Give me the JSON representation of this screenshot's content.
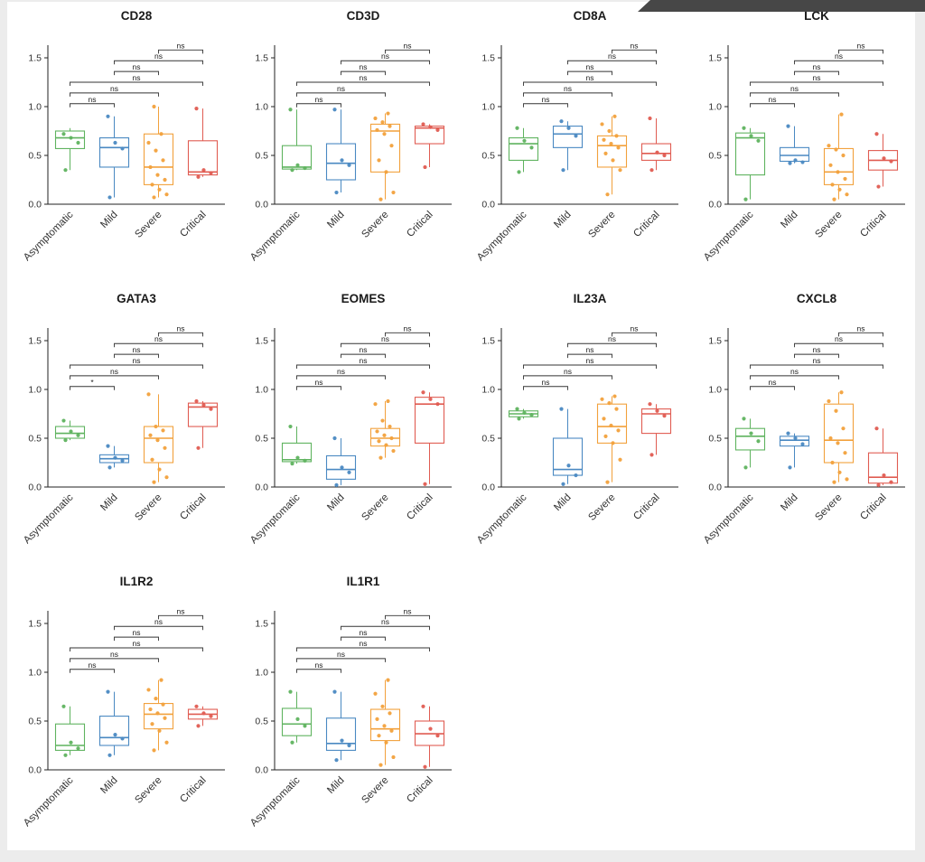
{
  "page": {
    "background_color": "#ececec",
    "plot_background_color": "#ffffff",
    "artifact_color": "#474747"
  },
  "chart_data": {
    "type": "boxplot-grid",
    "description": "Gene expression boxplots with jittered points across COVID-19 severity groups, pairwise significance brackets",
    "categories": [
      "Asymptomatic",
      "Mild",
      "Severe",
      "Critical"
    ],
    "colors": [
      "#5fb35f",
      "#4a89c2",
      "#f2a13c",
      "#e05c52"
    ],
    "y_ticks": [
      0.0,
      0.5,
      1.0,
      1.5
    ],
    "ylim": [
      0,
      1.65
    ],
    "comparisons": [
      [
        0,
        1
      ],
      [
        0,
        2
      ],
      [
        0,
        3
      ],
      [
        1,
        2
      ],
      [
        1,
        3
      ],
      [
        2,
        3
      ]
    ],
    "bracket_heights": [
      1.03,
      1.14,
      1.25,
      1.36,
      1.47,
      1.58
    ],
    "panels": [
      {
        "title": "CD28",
        "sig": [
          "ns",
          "ns",
          "ns",
          "ns",
          "ns",
          "ns"
        ],
        "groups": [
          {
            "low": 0.35,
            "q1": 0.57,
            "med": 0.68,
            "q3": 0.75,
            "high": 0.78,
            "points": [
              0.35,
              0.63,
              0.68,
              0.72
            ]
          },
          {
            "low": 0.07,
            "q1": 0.38,
            "med": 0.58,
            "q3": 0.68,
            "high": 0.9,
            "points": [
              0.07,
              0.57,
              0.63,
              0.9
            ]
          },
          {
            "low": 0.07,
            "q1": 0.2,
            "med": 0.38,
            "q3": 0.72,
            "high": 1.0,
            "points": [
              0.07,
              0.1,
              0.15,
              0.2,
              0.25,
              0.3,
              0.38,
              0.45,
              0.55,
              0.63,
              0.72,
              1.0
            ]
          },
          {
            "low": 0.28,
            "q1": 0.3,
            "med": 0.33,
            "q3": 0.65,
            "high": 0.98,
            "points": [
              0.28,
              0.32,
              0.35,
              0.98
            ]
          }
        ]
      },
      {
        "title": "CD3D",
        "sig": [
          "ns",
          "ns",
          "ns",
          "ns",
          "ns",
          "ns"
        ],
        "groups": [
          {
            "low": 0.35,
            "q1": 0.36,
            "med": 0.38,
            "q3": 0.6,
            "high": 0.97,
            "points": [
              0.35,
              0.37,
              0.4,
              0.97
            ]
          },
          {
            "low": 0.12,
            "q1": 0.25,
            "med": 0.42,
            "q3": 0.62,
            "high": 0.97,
            "points": [
              0.12,
              0.4,
              0.45,
              0.97
            ]
          },
          {
            "low": 0.05,
            "q1": 0.33,
            "med": 0.75,
            "q3": 0.82,
            "high": 0.93,
            "points": [
              0.05,
              0.12,
              0.33,
              0.45,
              0.6,
              0.72,
              0.76,
              0.8,
              0.84,
              0.88,
              0.93
            ]
          },
          {
            "low": 0.38,
            "q1": 0.62,
            "med": 0.78,
            "q3": 0.8,
            "high": 0.82,
            "points": [
              0.38,
              0.76,
              0.79,
              0.82
            ]
          }
        ]
      },
      {
        "title": "CD8A",
        "sig": [
          "ns",
          "ns",
          "ns",
          "ns",
          "ns",
          "ns"
        ],
        "groups": [
          {
            "low": 0.33,
            "q1": 0.45,
            "med": 0.62,
            "q3": 0.68,
            "high": 0.78,
            "points": [
              0.33,
              0.58,
              0.65,
              0.78
            ]
          },
          {
            "low": 0.35,
            "q1": 0.58,
            "med": 0.72,
            "q3": 0.8,
            "high": 0.85,
            "points": [
              0.35,
              0.7,
              0.78,
              0.85
            ]
          },
          {
            "low": 0.1,
            "q1": 0.38,
            "med": 0.6,
            "q3": 0.7,
            "high": 0.9,
            "points": [
              0.1,
              0.35,
              0.45,
              0.52,
              0.58,
              0.62,
              0.66,
              0.7,
              0.75,
              0.82,
              0.9
            ]
          },
          {
            "low": 0.35,
            "q1": 0.45,
            "med": 0.52,
            "q3": 0.62,
            "high": 0.88,
            "points": [
              0.35,
              0.5,
              0.53,
              0.88
            ]
          }
        ]
      },
      {
        "title": "LCK",
        "sig": [
          "ns",
          "ns",
          "ns",
          "ns",
          "ns",
          "ns"
        ],
        "groups": [
          {
            "low": 0.05,
            "q1": 0.3,
            "med": 0.68,
            "q3": 0.73,
            "high": 0.78,
            "points": [
              0.05,
              0.65,
              0.7,
              0.78
            ]
          },
          {
            "low": 0.42,
            "q1": 0.44,
            "med": 0.5,
            "q3": 0.58,
            "high": 0.8,
            "points": [
              0.42,
              0.43,
              0.45,
              0.8
            ]
          },
          {
            "low": 0.05,
            "q1": 0.2,
            "med": 0.33,
            "q3": 0.57,
            "high": 0.92,
            "points": [
              0.05,
              0.1,
              0.15,
              0.2,
              0.26,
              0.33,
              0.4,
              0.5,
              0.56,
              0.6,
              0.92
            ]
          },
          {
            "low": 0.18,
            "q1": 0.35,
            "med": 0.45,
            "q3": 0.55,
            "high": 0.72,
            "points": [
              0.18,
              0.44,
              0.47,
              0.72
            ]
          }
        ]
      },
      {
        "title": "GATA3",
        "sig": [
          "*",
          "ns",
          "ns",
          "ns",
          "ns",
          "ns"
        ],
        "groups": [
          {
            "low": 0.48,
            "q1": 0.5,
            "med": 0.55,
            "q3": 0.62,
            "high": 0.68,
            "points": [
              0.48,
              0.53,
              0.57,
              0.68
            ]
          },
          {
            "low": 0.2,
            "q1": 0.25,
            "med": 0.29,
            "q3": 0.33,
            "high": 0.42,
            "points": [
              0.2,
              0.27,
              0.3,
              0.42
            ]
          },
          {
            "low": 0.05,
            "q1": 0.25,
            "med": 0.5,
            "q3": 0.62,
            "high": 0.95,
            "points": [
              0.05,
              0.1,
              0.18,
              0.28,
              0.4,
              0.48,
              0.53,
              0.58,
              0.62,
              0.95
            ]
          },
          {
            "low": 0.4,
            "q1": 0.62,
            "med": 0.82,
            "q3": 0.86,
            "high": 0.88,
            "points": [
              0.4,
              0.8,
              0.84,
              0.88
            ]
          }
        ]
      },
      {
        "title": "EOMES",
        "sig": [
          "ns",
          "ns",
          "ns",
          "ns",
          "ns",
          "ns"
        ],
        "groups": [
          {
            "low": 0.24,
            "q1": 0.26,
            "med": 0.28,
            "q3": 0.45,
            "high": 0.62,
            "points": [
              0.24,
              0.27,
              0.3,
              0.62
            ]
          },
          {
            "low": 0.02,
            "q1": 0.08,
            "med": 0.18,
            "q3": 0.32,
            "high": 0.5,
            "points": [
              0.02,
              0.15,
              0.2,
              0.5
            ]
          },
          {
            "low": 0.3,
            "q1": 0.42,
            "med": 0.5,
            "q3": 0.6,
            "high": 0.88,
            "points": [
              0.3,
              0.37,
              0.43,
              0.47,
              0.5,
              0.53,
              0.57,
              0.62,
              0.68,
              0.85,
              0.88
            ]
          },
          {
            "low": 0.03,
            "q1": 0.45,
            "med": 0.85,
            "q3": 0.92,
            "high": 0.97,
            "points": [
              0.03,
              0.85,
              0.9,
              0.97
            ]
          }
        ]
      },
      {
        "title": "IL23A",
        "sig": [
          "ns",
          "ns",
          "ns",
          "ns",
          "ns",
          "ns"
        ],
        "groups": [
          {
            "low": 0.7,
            "q1": 0.72,
            "med": 0.75,
            "q3": 0.78,
            "high": 0.8,
            "points": [
              0.7,
              0.74,
              0.76,
              0.8
            ]
          },
          {
            "low": 0.03,
            "q1": 0.12,
            "med": 0.18,
            "q3": 0.5,
            "high": 0.8,
            "points": [
              0.03,
              0.12,
              0.22,
              0.8
            ]
          },
          {
            "low": 0.05,
            "q1": 0.45,
            "med": 0.62,
            "q3": 0.85,
            "high": 0.93,
            "points": [
              0.05,
              0.28,
              0.45,
              0.52,
              0.58,
              0.63,
              0.7,
              0.8,
              0.86,
              0.9,
              0.93
            ]
          },
          {
            "low": 0.33,
            "q1": 0.55,
            "med": 0.75,
            "q3": 0.8,
            "high": 0.85,
            "points": [
              0.33,
              0.73,
              0.78,
              0.85
            ]
          }
        ]
      },
      {
        "title": "CXCL8",
        "sig": [
          "ns",
          "ns",
          "ns",
          "ns",
          "ns",
          "ns"
        ],
        "groups": [
          {
            "low": 0.2,
            "q1": 0.38,
            "med": 0.52,
            "q3": 0.6,
            "high": 0.7,
            "points": [
              0.2,
              0.47,
              0.55,
              0.7
            ]
          },
          {
            "low": 0.2,
            "q1": 0.42,
            "med": 0.48,
            "q3": 0.52,
            "high": 0.55,
            "points": [
              0.2,
              0.44,
              0.5,
              0.55
            ]
          },
          {
            "low": 0.05,
            "q1": 0.25,
            "med": 0.48,
            "q3": 0.85,
            "high": 0.97,
            "points": [
              0.05,
              0.08,
              0.15,
              0.25,
              0.35,
              0.45,
              0.5,
              0.6,
              0.78,
              0.88,
              0.97
            ]
          },
          {
            "low": 0.02,
            "q1": 0.04,
            "med": 0.1,
            "q3": 0.35,
            "high": 0.6,
            "points": [
              0.02,
              0.05,
              0.12,
              0.6
            ]
          }
        ]
      },
      {
        "title": "IL1R2",
        "sig": [
          "ns",
          "ns",
          "ns",
          "ns",
          "ns",
          "ns"
        ],
        "groups": [
          {
            "low": 0.15,
            "q1": 0.2,
            "med": 0.25,
            "q3": 0.47,
            "high": 0.65,
            "points": [
              0.15,
              0.22,
              0.28,
              0.65
            ]
          },
          {
            "low": 0.15,
            "q1": 0.25,
            "med": 0.33,
            "q3": 0.55,
            "high": 0.8,
            "points": [
              0.15,
              0.32,
              0.36,
              0.8
            ]
          },
          {
            "low": 0.2,
            "q1": 0.42,
            "med": 0.57,
            "q3": 0.68,
            "high": 0.92,
            "points": [
              0.2,
              0.28,
              0.4,
              0.47,
              0.53,
              0.58,
              0.62,
              0.67,
              0.73,
              0.82,
              0.92
            ]
          },
          {
            "low": 0.45,
            "q1": 0.52,
            "med": 0.57,
            "q3": 0.62,
            "high": 0.65,
            "points": [
              0.45,
              0.55,
              0.58,
              0.65
            ]
          }
        ]
      },
      {
        "title": "IL1R1",
        "sig": [
          "ns",
          "ns",
          "ns",
          "ns",
          "ns",
          "ns"
        ],
        "groups": [
          {
            "low": 0.28,
            "q1": 0.35,
            "med": 0.47,
            "q3": 0.63,
            "high": 0.8,
            "points": [
              0.28,
              0.45,
              0.52,
              0.8
            ]
          },
          {
            "low": 0.1,
            "q1": 0.2,
            "med": 0.27,
            "q3": 0.53,
            "high": 0.8,
            "points": [
              0.1,
              0.25,
              0.3,
              0.8
            ]
          },
          {
            "low": 0.05,
            "q1": 0.3,
            "med": 0.42,
            "q3": 0.62,
            "high": 0.92,
            "points": [
              0.05,
              0.13,
              0.28,
              0.35,
              0.4,
              0.45,
              0.52,
              0.58,
              0.65,
              0.78,
              0.92
            ]
          },
          {
            "low": 0.03,
            "q1": 0.25,
            "med": 0.37,
            "q3": 0.5,
            "high": 0.65,
            "points": [
              0.03,
              0.35,
              0.42,
              0.65
            ]
          }
        ]
      }
    ]
  }
}
